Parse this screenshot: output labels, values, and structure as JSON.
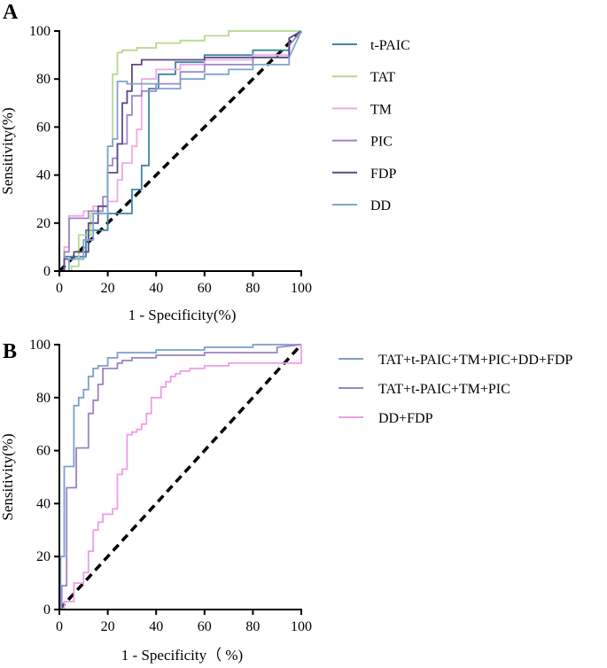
{
  "chart_data": [
    {
      "panel": "A",
      "type": "line",
      "title": "",
      "xlabel": "1 - Specificity(%)",
      "ylabel": "Sensitivity(%)",
      "xlim": [
        0,
        100
      ],
      "ylim": [
        0,
        100
      ],
      "xticks": [
        "0",
        "20",
        "40",
        "60",
        "80",
        "100"
      ],
      "yticks": [
        "0",
        "20",
        "40",
        "60",
        "80",
        "100"
      ],
      "legend_position": "right",
      "reference_line": {
        "x": [
          0,
          100
        ],
        "y": [
          0,
          100
        ],
        "style": "dashed",
        "color": "#000000"
      },
      "series": [
        {
          "name": "t-PAIC",
          "color": "#3f86a2",
          "x": [
            0,
            2,
            2,
            11,
            11,
            20,
            20,
            30,
            30,
            34,
            34,
            37,
            37,
            41,
            41,
            48,
            48,
            60,
            60,
            80,
            80,
            95,
            95,
            100
          ],
          "y": [
            0,
            0,
            6,
            6,
            17,
            17,
            24,
            24,
            34,
            34,
            44,
            44,
            76,
            76,
            82,
            82,
            87,
            87,
            90,
            90,
            92,
            92,
            97,
            100
          ]
        },
        {
          "name": "TAT",
          "color": "#b8d88e",
          "x": [
            0,
            5,
            5,
            8,
            8,
            13,
            13,
            20,
            20,
            22,
            22,
            24,
            24,
            26,
            26,
            32,
            32,
            40,
            40,
            50,
            50,
            60,
            60,
            70,
            70,
            100
          ],
          "y": [
            0,
            0,
            2,
            2,
            15,
            15,
            24,
            24,
            52,
            52,
            82,
            82,
            91,
            91,
            92,
            92,
            93,
            93,
            95,
            95,
            96,
            96,
            98,
            98,
            100,
            100
          ]
        },
        {
          "name": "TM",
          "color": "#ecaae6",
          "x": [
            0,
            2,
            2,
            4,
            4,
            10,
            10,
            14,
            14,
            20,
            20,
            24,
            24,
            26,
            26,
            30,
            30,
            32,
            32,
            34,
            34,
            40,
            40,
            50,
            50,
            60,
            60,
            80,
            80,
            95,
            95,
            100
          ],
          "y": [
            0,
            0,
            10,
            10,
            23,
            23,
            25,
            25,
            27,
            27,
            29,
            29,
            38,
            38,
            45,
            45,
            52,
            52,
            59,
            59,
            80,
            80,
            84,
            84,
            86,
            86,
            88,
            88,
            90,
            90,
            97,
            100
          ]
        },
        {
          "name": "PIC",
          "color": "#9e86c8",
          "x": [
            0,
            2,
            2,
            4,
            4,
            12,
            12,
            18,
            18,
            20,
            20,
            22,
            22,
            24,
            24,
            28,
            28,
            30,
            30,
            34,
            34,
            40,
            40,
            50,
            50,
            60,
            60,
            80,
            80,
            95,
            95,
            100
          ],
          "y": [
            0,
            0,
            8,
            8,
            22,
            22,
            25,
            25,
            31,
            31,
            44,
            44,
            47,
            47,
            53,
            53,
            65,
            65,
            73,
            73,
            75,
            75,
            78,
            78,
            83,
            83,
            86,
            86,
            89,
            89,
            94,
            100
          ]
        },
        {
          "name": "FDP",
          "color": "#5e4a86",
          "x": [
            0,
            2,
            2,
            6,
            6,
            12,
            12,
            16,
            16,
            20,
            20,
            24,
            24,
            26,
            26,
            28,
            28,
            30,
            30,
            34,
            34,
            40,
            40,
            60,
            60,
            95,
            95,
            100
          ],
          "y": [
            0,
            0,
            5,
            5,
            8,
            8,
            20,
            20,
            27,
            27,
            41,
            41,
            53,
            53,
            70,
            70,
            75,
            75,
            86,
            86,
            88,
            88,
            88,
            88,
            89,
            89,
            97,
            100
          ]
        },
        {
          "name": "DD",
          "color": "#7ea4cf",
          "x": [
            0,
            4,
            4,
            10,
            10,
            14,
            14,
            20,
            20,
            22,
            22,
            24,
            24,
            28,
            28,
            34,
            34,
            40,
            40,
            50,
            50,
            60,
            60,
            70,
            70,
            80,
            80,
            95,
            95,
            100
          ],
          "y": [
            0,
            0,
            5,
            5,
            13,
            13,
            24,
            24,
            52,
            52,
            55,
            55,
            79,
            79,
            78,
            78,
            78,
            78,
            76,
            76,
            80,
            80,
            82,
            82,
            84,
            84,
            86,
            86,
            89,
            100
          ]
        }
      ]
    },
    {
      "panel": "B",
      "type": "line",
      "title": "",
      "xlabel": "1 - Specificity（ %)",
      "ylabel": "Sensitivity(%)",
      "xlim": [
        0,
        100
      ],
      "ylim": [
        0,
        100
      ],
      "xticks": [
        "0",
        "20",
        "40",
        "60",
        "80",
        "100"
      ],
      "yticks": [
        "0",
        "20",
        "40",
        "60",
        "80",
        "100"
      ],
      "legend_position": "right",
      "reference_line": {
        "x": [
          0,
          100
        ],
        "y": [
          0,
          100
        ],
        "style": "dashed",
        "color": "#000000"
      },
      "series": [
        {
          "name": "TAT+t-PAIC+TM+PIC+DD+FDP",
          "color": "#7b9fd0",
          "x": [
            0,
            0.5,
            0.5,
            2,
            2,
            4,
            4,
            6,
            6,
            8,
            8,
            10,
            10,
            12,
            12,
            14,
            14,
            16,
            16,
            20,
            20,
            24,
            24,
            30,
            30,
            40,
            40,
            60,
            60,
            80,
            80,
            100
          ],
          "y": [
            0,
            0,
            20,
            20,
            54,
            54,
            54,
            54,
            77,
            77,
            80,
            80,
            83,
            83,
            88,
            88,
            91,
            91,
            92,
            92,
            95,
            95,
            97,
            97,
            97,
            97,
            98,
            98,
            99,
            99,
            100,
            100
          ]
        },
        {
          "name": "TAT+t-PAIC+TM+PIC",
          "color": "#9a83c8",
          "x": [
            0,
            1,
            1,
            3,
            3,
            5,
            5,
            7,
            7,
            9,
            9,
            12,
            12,
            14,
            14,
            16,
            16,
            18,
            18,
            24,
            24,
            26,
            26,
            30,
            30,
            40,
            40,
            60,
            60,
            90,
            90,
            100
          ],
          "y": [
            0,
            0,
            9,
            9,
            46,
            46,
            46,
            46,
            61,
            61,
            61,
            61,
            74,
            74,
            79,
            79,
            85,
            85,
            91,
            91,
            93,
            93,
            94,
            94,
            95,
            95,
            96,
            96,
            97,
            97,
            99,
            100
          ]
        },
        {
          "name": "DD+FDP",
          "color": "#ee9ee6",
          "x": [
            0,
            2,
            2,
            6,
            6,
            10,
            10,
            12,
            12,
            14,
            14,
            16,
            16,
            18,
            18,
            22,
            22,
            24,
            24,
            26,
            26,
            28,
            28,
            30,
            30,
            32,
            32,
            34,
            34,
            36,
            36,
            38,
            38,
            40,
            40,
            42,
            42,
            44,
            44,
            46,
            46,
            48,
            48,
            50,
            50,
            54,
            54,
            60,
            60,
            70,
            70,
            100,
            100
          ],
          "y": [
            0,
            0,
            3,
            3,
            10,
            10,
            14,
            14,
            22,
            22,
            30,
            30,
            33,
            33,
            36,
            36,
            38,
            38,
            51,
            51,
            53,
            53,
            66,
            66,
            67,
            67,
            68,
            68,
            70,
            70,
            74,
            74,
            80,
            80,
            80,
            80,
            84,
            84,
            86,
            86,
            88,
            88,
            89,
            89,
            90,
            90,
            91,
            91,
            92,
            92,
            93,
            93,
            100
          ]
        }
      ]
    }
  ]
}
